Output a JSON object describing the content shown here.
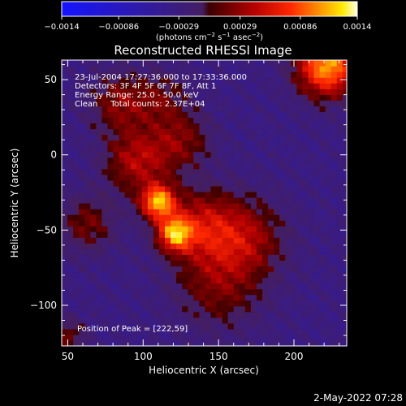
{
  "colorbar": {
    "ticks": [
      "−0.0014",
      "−0.00086",
      "−0.00029",
      "0.00029",
      "0.00086",
      "0.0014"
    ],
    "unit_parts": [
      "(photons cm",
      "−2",
      " s",
      "−1",
      " asec",
      "−2",
      ")"
    ],
    "range": [
      -0.0014,
      0.0014
    ]
  },
  "annotations": [
    "23-Jul-2004 17:27:36.000 to 17:33:36.000",
    "Detectors: 3F 4F 5F 6F 7F 8F, Att 1",
    "Energy Range: 25.0 - 50.0 keV",
    "Clean     Total counts: 2.37E+04"
  ],
  "peak_text": "Position of Peak = [222,59]",
  "footer_date": "2-May-2022 07:28",
  "chart_data": {
    "type": "heatmap",
    "title": "Reconstructed RHESSI Image",
    "xlabel": "Heliocentric X (arcsec)",
    "ylabel": "Heliocentric Y (arcsec)",
    "xlim": [
      46,
      235
    ],
    "ylim": [
      -127,
      63
    ],
    "xticks": [
      50,
      100,
      150,
      200
    ],
    "yticks": [
      50,
      0,
      -50,
      -100
    ],
    "xtick_labels": [
      "50",
      "100",
      "150",
      "200"
    ],
    "ytick_labels": [
      "50",
      "0",
      "−50",
      "−100"
    ],
    "colormap": "rainbow-hot",
    "sources": [
      {
        "x": 222,
        "y": 59,
        "sigma": 14,
        "amp": 1.0
      },
      {
        "x": 110,
        "y": -31,
        "sigma": 8,
        "amp": 0.95
      },
      {
        "x": 121,
        "y": -52,
        "sigma": 8,
        "amp": 0.82
      },
      {
        "x": 96,
        "y": -4,
        "sigma": 15,
        "amp": 0.5
      },
      {
        "x": 138,
        "y": -47,
        "sigma": 17,
        "amp": 0.5
      },
      {
        "x": 168,
        "y": -55,
        "sigma": 18,
        "amp": 0.44
      },
      {
        "x": 85,
        "y": 35,
        "sigma": 14,
        "amp": 0.4
      },
      {
        "x": 125,
        "y": 10,
        "sigma": 14,
        "amp": 0.36
      },
      {
        "x": 150,
        "y": -87,
        "sigma": 20,
        "amp": 0.34
      },
      {
        "x": 63,
        "y": -46,
        "sigma": 13,
        "amp": 0.34
      },
      {
        "x": 113,
        "y": 38,
        "sigma": 12,
        "amp": 0.27
      },
      {
        "x": 50,
        "y": -120,
        "sigma": 8,
        "amp": 0.32
      }
    ],
    "background_level": -0.22
  }
}
